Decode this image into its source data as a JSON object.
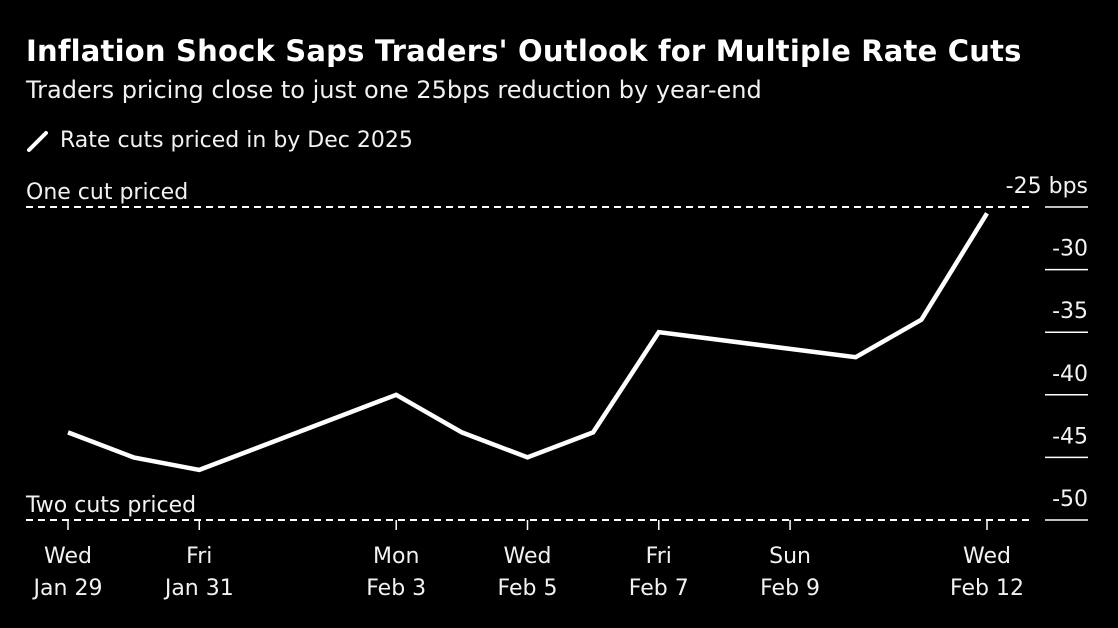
{
  "header": {
    "title": "Inflation Shock Saps Traders' Outlook for Multiple Rate Cuts",
    "subtitle": "Traders pricing close to just one 25bps reduction by year-end"
  },
  "legend": {
    "label": "Rate cuts priced in by Dec 2025",
    "icon": "line-swatch-icon"
  },
  "colors": {
    "background": "#000000",
    "line": "#ffffff",
    "text": "#f2f2f2"
  },
  "chart_data": {
    "type": "line",
    "title": "Inflation Shock Saps Traders' Outlook for Multiple Rate Cuts",
    "subtitle": "Traders pricing close to just one 25bps reduction by year-end",
    "xlabel": "",
    "ylabel": "",
    "ylim": [
      -50,
      -25
    ],
    "y_ticks": [
      {
        "value": -25,
        "label": "-25 bps"
      },
      {
        "value": -30,
        "label": "-30"
      },
      {
        "value": -35,
        "label": "-35"
      },
      {
        "value": -40,
        "label": "-40"
      },
      {
        "value": -45,
        "label": "-45"
      },
      {
        "value": -50,
        "label": "-50"
      }
    ],
    "x_ticks": [
      {
        "date": "2025-01-29",
        "line1": "Wed",
        "line2": "Jan 29"
      },
      {
        "date": "2025-01-31",
        "line1": "Fri",
        "line2": "Jan 31"
      },
      {
        "date": "2025-02-03",
        "line1": "Mon",
        "line2": "Feb 3"
      },
      {
        "date": "2025-02-05",
        "line1": "Wed",
        "line2": "Feb 5"
      },
      {
        "date": "2025-02-07",
        "line1": "Fri",
        "line2": "Feb 7"
      },
      {
        "date": "2025-02-09",
        "line1": "Sun",
        "line2": "Feb 9"
      },
      {
        "date": "2025-02-12",
        "line1": "Wed",
        "line2": "Feb 12"
      }
    ],
    "series": [
      {
        "name": "Rate cuts priced in by Dec 2025",
        "points": [
          {
            "x": "2025-01-29",
            "y": -43.0
          },
          {
            "x": "2025-01-30",
            "y": -45.0
          },
          {
            "x": "2025-01-31",
            "y": -46.0
          },
          {
            "x": "2025-02-03",
            "y": -40.0
          },
          {
            "x": "2025-02-04",
            "y": -43.0
          },
          {
            "x": "2025-02-05",
            "y": -45.0
          },
          {
            "x": "2025-02-06",
            "y": -43.0
          },
          {
            "x": "2025-02-07",
            "y": -35.0
          },
          {
            "x": "2025-02-10",
            "y": -37.0
          },
          {
            "x": "2025-02-11",
            "y": -34.0
          },
          {
            "x": "2025-02-12",
            "y": -25.5
          }
        ]
      }
    ],
    "reference_lines": [
      {
        "value": -25,
        "label": "One cut priced",
        "style": "dashed"
      },
      {
        "value": -50,
        "label": "Two cuts priced",
        "style": "dashed"
      }
    ],
    "grid": false,
    "legend_position": "top-left"
  }
}
